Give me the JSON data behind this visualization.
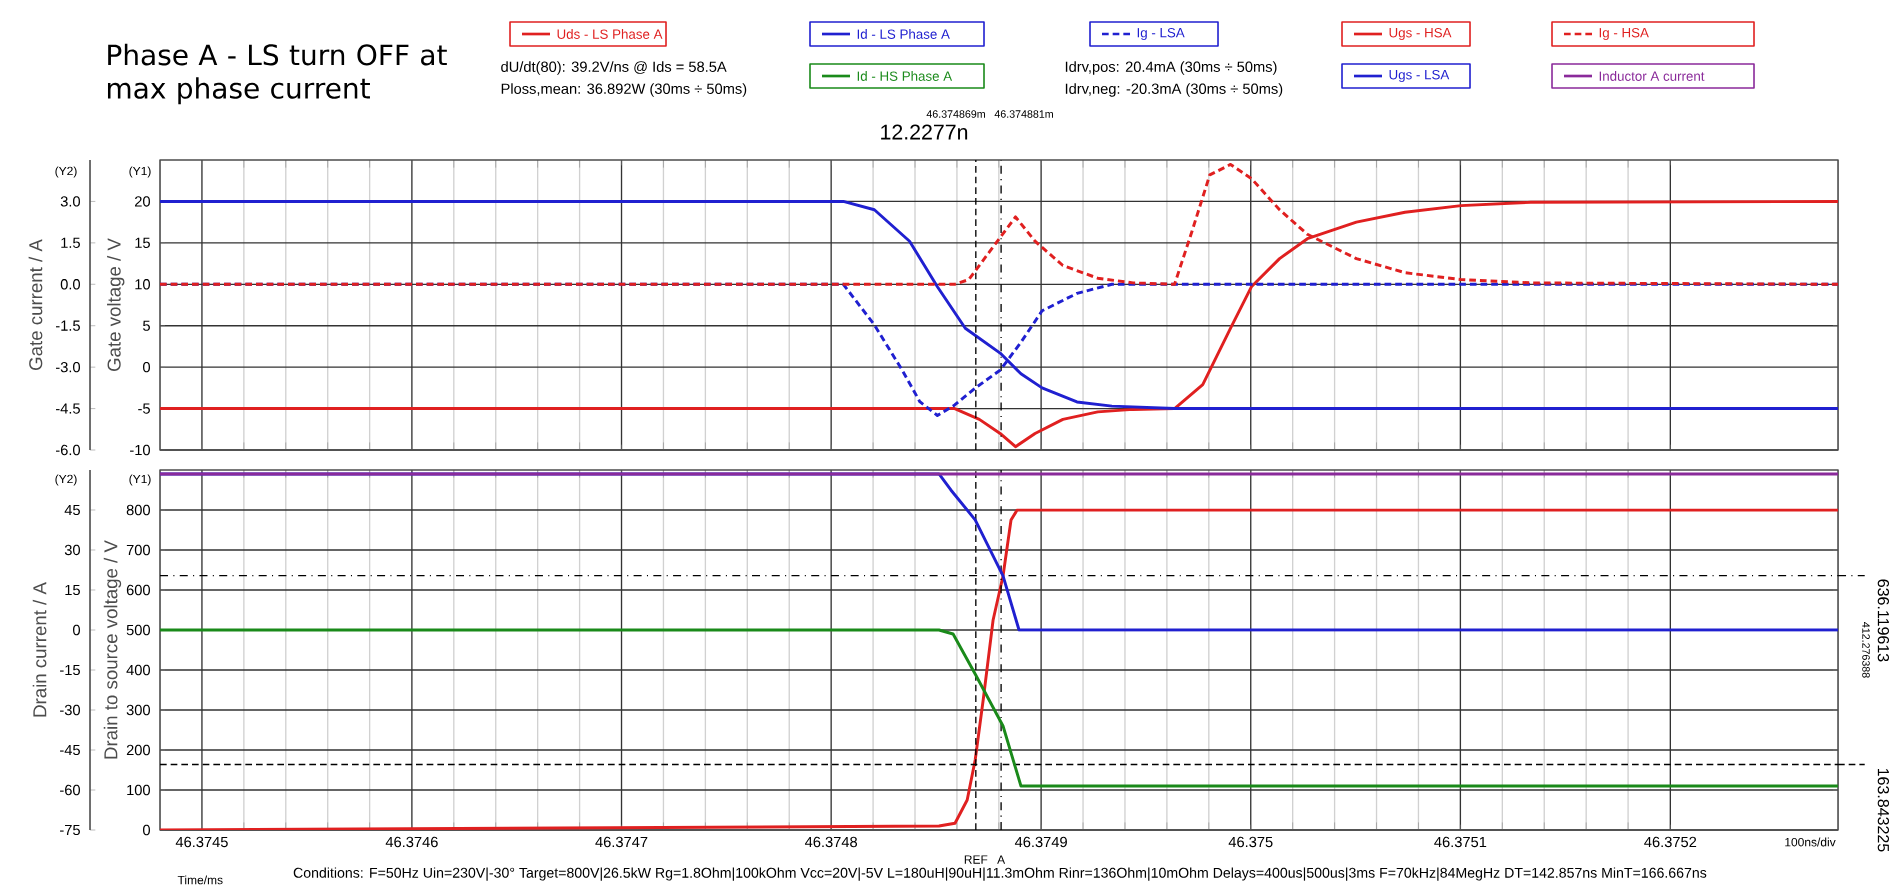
{
  "chart_data": [
    {
      "type": "line",
      "title": "Phase A - LS turn OFF at max phase current",
      "ylabel": "Gate voltage / V",
      "y2label": "Gate current / A",
      "annotations": [
        "dU/dt(80): 39.2V/ns @ Ids = 58.5A",
        "Ploss,mean: 36.892W (30ms ÷ 50ms)",
        "Idrv,pos: 20.4mA (30ms ÷ 50ms)",
        "Idrv,neg: -20.3mA (30ms ÷ 50ms)",
        "46.374869m",
        "46.374881m",
        "12.2277n",
        "(Y2)",
        "(Y1)"
      ],
      "xlim": [
        46.37448,
        46.37528
      ],
      "xticks": [
        46.3745,
        46.3746,
        46.3747,
        46.3748,
        46.3749,
        46.375,
        46.3751,
        46.3752
      ],
      "ylim": [
        -10,
        25
      ],
      "yticks": [
        -10,
        -5,
        0,
        5,
        10,
        15,
        20
      ],
      "y2lim": [
        -6,
        4.5
      ],
      "y2ticks": [
        {
          "value": -6,
          "label": "-6.0"
        },
        {
          "value": -4.5,
          "label": "-4.5"
        },
        {
          "value": -3,
          "label": "-3.0"
        },
        {
          "value": -1.5,
          "label": "-1.5"
        },
        {
          "value": 0,
          "label": "0.0"
        },
        {
          "value": 1.5,
          "label": "1.5"
        },
        {
          "value": 3,
          "label": "3.0"
        }
      ],
      "grid": true,
      "legend": "top",
      "tick_labels": "y",
      "ref_lines": [
        {
          "axis": "x",
          "value": 46.374869,
          "line_style": "dashed",
          "color": "#000000"
        },
        {
          "axis": "x",
          "value": 46.374881,
          "line_style": "dashdot",
          "color": "#000000"
        }
      ],
      "series": [
        {
          "name": "Ig - LSA",
          "color": "#2020d0",
          "axis": "y2",
          "line_style": "dashed",
          "x": [
            46.37448,
            46.3748057,
            46.3748206,
            46.3748339,
            46.3748423,
            46.3748506,
            46.3748589,
            46.3748689,
            46.3748805,
            46.3748905,
            46.3749005,
            46.3749171,
            46.3749338,
            46.37528
          ],
          "values": [
            0,
            0,
            -1.47,
            -3.11,
            -4.25,
            -4.75,
            -4.37,
            -3.74,
            -3.11,
            -2.1,
            -0.96,
            -0.33,
            0,
            0
          ]
        },
        {
          "name": "Ugs - HSA",
          "color": "#e02020",
          "line_style": "solid",
          "x": [
            46.37448,
            46.3748589,
            46.3748706,
            46.3748805,
            46.3748879,
            46.3748972,
            46.3749105,
            46.3749271,
            46.3749438,
            46.3749637,
            46.3749771,
            46.3749904,
            46.3750003,
            46.3750137,
            46.375027,
            46.3750503,
            46.3750736,
            46.3751002,
            46.3751335,
            46.37528
          ],
          "values": [
            -5,
            -5,
            -6.3,
            -8,
            -9.6,
            -8,
            -6.3,
            -5.4,
            -5.1,
            -5,
            -2.1,
            4.7,
            9.7,
            13.1,
            15.5,
            17.5,
            18.7,
            19.5,
            19.9,
            20
          ]
        },
        {
          "name": "Ig - HSA",
          "color": "#e02020",
          "axis": "y2",
          "line_style": "dashed",
          "x": [
            46.37448,
            46.3748589,
            46.3748656,
            46.3748755,
            46.3748879,
            46.3748972,
            46.3749105,
            46.3749271,
            46.3749438,
            46.3749637,
            46.3749721,
            46.3749804,
            46.3749904,
            46.3750003,
            46.3750137,
            46.375027,
            46.3750503,
            46.3750736,
            46.3751002,
            46.3751335,
            46.37528
          ],
          "values": [
            0,
            0,
            0.17,
            1.18,
            2.44,
            1.56,
            0.68,
            0.22,
            0.05,
            0,
            1.94,
            3.96,
            4.34,
            3.83,
            2.7,
            1.81,
            0.93,
            0.42,
            0.17,
            0.05,
            0
          ]
        },
        {
          "name": "Ugs - LSA",
          "color": "#2020d0",
          "line_style": "solid",
          "x": [
            46.37448,
            46.3748057,
            46.3748206,
            46.3748373,
            46.3748506,
            46.3748639,
            46.3748805,
            46.3748905,
            46.3749005,
            46.3749171,
            46.3749338,
            46.3749637,
            46.37528
          ],
          "values": [
            20,
            20,
            19,
            15.2,
            9.7,
            4.7,
            1.7,
            -0.8,
            -2.5,
            -4.2,
            -4.7,
            -5,
            -5
          ]
        }
      ]
    },
    {
      "type": "line",
      "xlabel": "Time/ms",
      "ylabel": "Drain to source voltage / V",
      "y2label": "Drain current / A",
      "annotations": [
        "(Y2)",
        "(Y1)",
        "412.276388",
        "100ns/div",
        "Conditions: F=50Hz Uin=230V|-30° Target=800V|26.5kW Rg=1.8Ohm|100kOhm Vcc=20V|-5V L=180uH|90uH|11.3mOhm Rinr=136Ohm|10mOhm Delays=400us|500us|3ms F=70kHz|84MegHz DT=142.857ns MinT=166.667ns"
      ],
      "xlim": [
        46.37448,
        46.37528
      ],
      "xticks": [
        46.3745,
        46.3746,
        46.3747,
        46.3748,
        46.3749,
        46.375,
        46.3751,
        46.3752
      ],
      "ylim": [
        0,
        900
      ],
      "yticks": [
        0,
        100,
        200,
        300,
        400,
        500,
        600,
        700,
        800
      ],
      "y2lim": [
        -75,
        60
      ],
      "y2ticks": [
        -75,
        -60,
        -45,
        -30,
        -15,
        0,
        15,
        30,
        45
      ],
      "grid": true,
      "legend": "top",
      "ref_lines": [
        {
          "axis": "x",
          "value": 46.374869,
          "label": "REF",
          "line_style": "dashed",
          "color": "#000000"
        },
        {
          "axis": "x",
          "value": 46.374881,
          "label": "A",
          "line_style": "dashdot",
          "color": "#000000"
        },
        {
          "axis": "y",
          "value": 636.119613,
          "label": "636.119613",
          "line_style": "dashdot",
          "color": "#000000"
        },
        {
          "axis": "y",
          "value": 163.843225,
          "label": "163.843225",
          "line_style": "dashed",
          "color": "#000000"
        }
      ],
      "series": [
        {
          "name": "Uds - LS Phase A",
          "color": "#e02020",
          "line_style": "solid",
          "x": [
            46.37448,
            46.3748514,
            46.374859,
            46.3748648,
            46.3748686,
            46.3748724,
            46.3748771,
            46.3748819,
            46.3748857,
            46.3748886,
            46.37528
          ],
          "values": [
            0,
            10,
            17,
            75,
            175,
            325,
            525,
            635,
            775,
            800,
            800
          ]
        },
        {
          "name": "Id - LS Phase A",
          "color": "#2020d0",
          "axis": "y2",
          "line_style": "solid",
          "x": [
            46.37448,
            46.3748514,
            46.3748571,
            46.3748686,
            46.3748819,
            46.3748895,
            46.37528
          ],
          "values": [
            58.5,
            58.5,
            52.5,
            41.3,
            20.3,
            0,
            0
          ]
        },
        {
          "name": "Id - HS Phase A",
          "color": "#1a8a1a",
          "axis": "y2",
          "line_style": "solid",
          "x": [
            46.37448,
            46.3748514,
            46.3748581,
            46.3748686,
            46.3748819,
            46.3748905,
            46.37528
          ],
          "values": [
            0,
            0,
            -1.5,
            -16.5,
            -36,
            -58.5,
            -58.5
          ]
        },
        {
          "name": "Inductor A current",
          "color": "#8a2a9a",
          "axis": "y2",
          "line_style": "solid",
          "x": [
            46.37448,
            46.37528
          ],
          "values": [
            58.5,
            58.5
          ]
        }
      ]
    }
  ]
}
